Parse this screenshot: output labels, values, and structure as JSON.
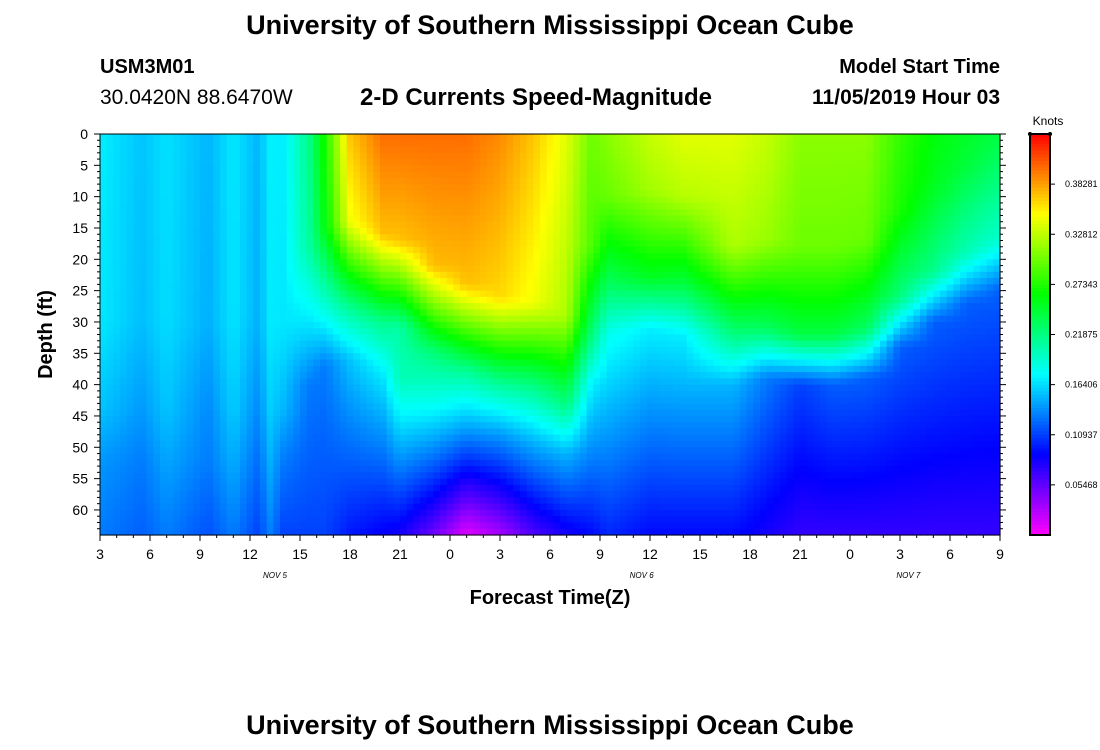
{
  "header": {
    "title": "University of Southern Mississippi Ocean Cube",
    "station_id": "USM3M01",
    "coordinates": "30.0420N 88.6470W",
    "chart_title": "2-D Currents Speed-Magnitude",
    "model_start_label": "Model Start Time",
    "model_start_value": "11/05/2019 Hour 03"
  },
  "footer": {
    "title": "University of Southern Mississippi Ocean Cube"
  },
  "chart_data": {
    "type": "heatmap",
    "title": "2-D Currents Speed-Magnitude",
    "xlabel": "Forecast Time(Z)",
    "ylabel": "Depth (ft)",
    "x_tick_labels": [
      "3",
      "6",
      "9",
      "12",
      "15",
      "18",
      "21",
      "0",
      "3",
      "6",
      "9",
      "12",
      "15",
      "18",
      "21",
      "0",
      "3",
      "6",
      "9"
    ],
    "x_hours_since_start": [
      0,
      3,
      6,
      9,
      12,
      15,
      18,
      21,
      24,
      27,
      30,
      33,
      36,
      39,
      42,
      45,
      48,
      51,
      54
    ],
    "x_range_hours": [
      0,
      54
    ],
    "date_labels": [
      {
        "text": "NOV 5",
        "hour": 10.5
      },
      {
        "text": "NOV 6",
        "hour": 32.5
      },
      {
        "text": "NOV 7",
        "hour": 48.5
      }
    ],
    "y_tick_labels": [
      "0",
      "5",
      "10",
      "15",
      "20",
      "25",
      "30",
      "35",
      "40",
      "45",
      "50",
      "55",
      "60"
    ],
    "y_range_ft": [
      0,
      64
    ],
    "colorbar": {
      "unit": "Knots",
      "min": 0,
      "max": 0.4375,
      "tick_values": [
        0.38281,
        0.32812,
        0.27343,
        0.21875,
        0.16406,
        0.10937,
        0.05468
      ],
      "tick_labels": [
        "0.38281",
        "0.32812",
        "0.27343",
        "0.21875",
        "0.16406",
        "0.10937",
        "0.05468"
      ]
    },
    "speed_profiles": [
      {
        "hour": 0,
        "surface_speed": 0.17,
        "mid_speed": 0.155,
        "deep_speed": 0.14,
        "bottom_speed": 0.13,
        "thermocline_depth_ft": 30
      },
      {
        "hour": 2.5,
        "surface_speed": 0.155,
        "mid_speed": 0.14,
        "deep_speed": 0.13,
        "bottom_speed": 0.12,
        "thermocline_depth_ft": 30
      },
      {
        "hour": 4,
        "surface_speed": 0.165,
        "mid_speed": 0.155,
        "deep_speed": 0.145,
        "bottom_speed": 0.13,
        "thermocline_depth_ft": 30
      },
      {
        "hour": 6.5,
        "surface_speed": 0.15,
        "mid_speed": 0.135,
        "deep_speed": 0.13,
        "bottom_speed": 0.115,
        "thermocline_depth_ft": 30
      },
      {
        "hour": 8,
        "surface_speed": 0.168,
        "mid_speed": 0.158,
        "deep_speed": 0.148,
        "bottom_speed": 0.13,
        "thermocline_depth_ft": 30
      },
      {
        "hour": 9.5,
        "surface_speed": 0.15,
        "mid_speed": 0.135,
        "deep_speed": 0.125,
        "bottom_speed": 0.11,
        "thermocline_depth_ft": 30
      },
      {
        "hour": 10.2,
        "surface_speed": 0.17,
        "mid_speed": 0.158,
        "deep_speed": 0.148,
        "bottom_speed": 0.13,
        "thermocline_depth_ft": 30
      },
      {
        "hour": 11,
        "surface_speed": 0.17,
        "mid_speed": 0.15,
        "deep_speed": 0.13,
        "bottom_speed": 0.11,
        "thermocline_depth_ft": 30
      },
      {
        "hour": 12.5,
        "surface_speed": 0.215,
        "mid_speed": 0.16,
        "deep_speed": 0.13,
        "bottom_speed": 0.11,
        "thermocline_depth_ft": 18
      },
      {
        "hour": 13.5,
        "surface_speed": 0.27,
        "mid_speed": 0.18,
        "deep_speed": 0.13,
        "bottom_speed": 0.11,
        "thermocline_depth_ft": 15
      },
      {
        "hour": 15,
        "surface_speed": 0.37,
        "mid_speed": 0.21,
        "deep_speed": 0.155,
        "bottom_speed": 0.095,
        "thermocline_depth_ft": 14
      },
      {
        "hour": 17,
        "surface_speed": 0.4,
        "mid_speed": 0.215,
        "deep_speed": 0.17,
        "bottom_speed": 0.085,
        "thermocline_depth_ft": 16
      },
      {
        "hour": 18,
        "surface_speed": 0.4,
        "mid_speed": 0.205,
        "deep_speed": 0.2,
        "bottom_speed": 0.08,
        "thermocline_depth_ft": 17
      },
      {
        "hour": 20,
        "surface_speed": 0.4,
        "mid_speed": 0.22,
        "deep_speed": 0.18,
        "bottom_speed": 0.05,
        "thermocline_depth_ft": 21
      },
      {
        "hour": 22,
        "surface_speed": 0.4,
        "mid_speed": 0.21,
        "deep_speed": 0.15,
        "bottom_speed": 0.01,
        "thermocline_depth_ft": 24
      },
      {
        "hour": 24,
        "surface_speed": 0.39,
        "mid_speed": 0.21,
        "deep_speed": 0.14,
        "bottom_speed": 0.03,
        "thermocline_depth_ft": 26
      },
      {
        "hour": 26,
        "surface_speed": 0.37,
        "mid_speed": 0.21,
        "deep_speed": 0.15,
        "bottom_speed": 0.06,
        "thermocline_depth_ft": 27
      },
      {
        "hour": 28,
        "surface_speed": 0.34,
        "mid_speed": 0.22,
        "deep_speed": 0.15,
        "bottom_speed": 0.08,
        "thermocline_depth_ft": 29
      },
      {
        "hour": 29.5,
        "surface_speed": 0.3,
        "mid_speed": 0.22,
        "deep_speed": 0.17,
        "bottom_speed": 0.09,
        "thermocline_depth_ft": 18
      },
      {
        "hour": 30.5,
        "surface_speed": 0.31,
        "mid_speed": 0.23,
        "deep_speed": 0.18,
        "bottom_speed": 0.1,
        "thermocline_depth_ft": 10
      },
      {
        "hour": 33,
        "surface_speed": 0.33,
        "mid_speed": 0.25,
        "deep_speed": 0.17,
        "bottom_speed": 0.09,
        "thermocline_depth_ft": 9
      },
      {
        "hour": 35,
        "surface_speed": 0.34,
        "mid_speed": 0.24,
        "deep_speed": 0.17,
        "bottom_speed": 0.09,
        "thermocline_depth_ft": 10
      },
      {
        "hour": 38,
        "surface_speed": 0.34,
        "mid_speed": 0.22,
        "deep_speed": 0.15,
        "bottom_speed": 0.09,
        "thermocline_depth_ft": 18
      },
      {
        "hour": 40,
        "surface_speed": 0.33,
        "mid_speed": 0.23,
        "deep_speed": 0.13,
        "bottom_speed": 0.08,
        "thermocline_depth_ft": 17
      },
      {
        "hour": 42,
        "surface_speed": 0.31,
        "mid_speed": 0.24,
        "deep_speed": 0.11,
        "bottom_speed": 0.07,
        "thermocline_depth_ft": 18
      },
      {
        "hour": 44,
        "surface_speed": 0.31,
        "mid_speed": 0.24,
        "deep_speed": 0.12,
        "bottom_speed": 0.07,
        "thermocline_depth_ft": 18
      },
      {
        "hour": 46,
        "surface_speed": 0.31,
        "mid_speed": 0.23,
        "deep_speed": 0.12,
        "bottom_speed": 0.07,
        "thermocline_depth_ft": 17
      },
      {
        "hour": 48,
        "surface_speed": 0.28,
        "mid_speed": 0.22,
        "deep_speed": 0.12,
        "bottom_speed": 0.07,
        "thermocline_depth_ft": 12
      },
      {
        "hour": 50,
        "surface_speed": 0.26,
        "mid_speed": 0.215,
        "deep_speed": 0.12,
        "bottom_speed": 0.07,
        "thermocline_depth_ft": 8
      },
      {
        "hour": 52,
        "surface_speed": 0.25,
        "mid_speed": 0.2,
        "deep_speed": 0.12,
        "bottom_speed": 0.07,
        "thermocline_depth_ft": 5
      },
      {
        "hour": 54,
        "surface_speed": 0.24,
        "mid_speed": 0.19,
        "deep_speed": 0.12,
        "bottom_speed": 0.07,
        "thermocline_depth_ft": 3
      }
    ]
  }
}
